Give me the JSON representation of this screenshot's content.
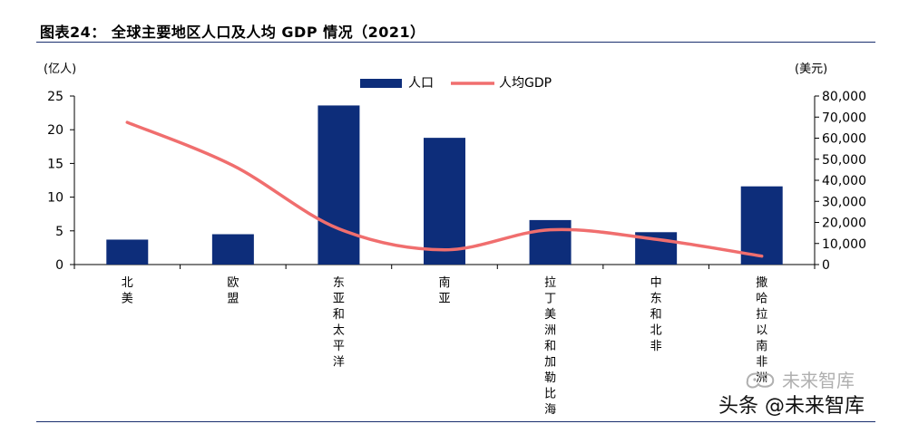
{
  "figure": {
    "title": "图表24： 全球主要地区人口及人均 GDP 情况（2021）"
  },
  "watermark": {
    "brand": "未来智库",
    "credit": "头条 @未来智库"
  },
  "chart_data": {
    "type": "bar",
    "categories": [
      "北美",
      "欧盟",
      "东亚和太平洋",
      "南亚",
      "拉丁美洲和加勒比海",
      "中东和北非",
      "撒哈拉以南非洲"
    ],
    "category_labels_visible": [
      "北美",
      "欧盟",
      "东亚和太平洋",
      "南亚",
      "拉丁美洲和加勒比海",
      "中东和北非",
      "撒哈拉以南非洲"
    ],
    "series": [
      {
        "name": "人口",
        "kind": "bar",
        "axis": "left",
        "color": "#0d2d7a",
        "values": [
          3.7,
          4.5,
          23.6,
          18.8,
          6.6,
          4.8,
          11.6
        ]
      },
      {
        "name": "人均GDP",
        "kind": "line",
        "axis": "right",
        "color": "#f06e6e",
        "values": [
          67500,
          47000,
          17000,
          7000,
          16500,
          12000,
          4000
        ]
      }
    ],
    "left_axis": {
      "label": "(亿人)",
      "ylim": [
        0,
        25
      ],
      "ticks": [
        0,
        5,
        10,
        15,
        20,
        25
      ],
      "tick_labels": [
        "0",
        "5",
        "10",
        "15",
        "20",
        "25"
      ]
    },
    "right_axis": {
      "label": "(美元)",
      "ylim": [
        0,
        80000
      ],
      "ticks": [
        0,
        10000,
        20000,
        30000,
        40000,
        50000,
        60000,
        70000,
        80000
      ],
      "tick_labels": [
        "0",
        "10,000",
        "20,000",
        "30,000",
        "40,000",
        "50,000",
        "60,000",
        "70,000",
        "80,000"
      ]
    },
    "legend": {
      "position": "top-center",
      "entries": [
        "人口",
        "人均GDP"
      ]
    },
    "grid": false
  }
}
